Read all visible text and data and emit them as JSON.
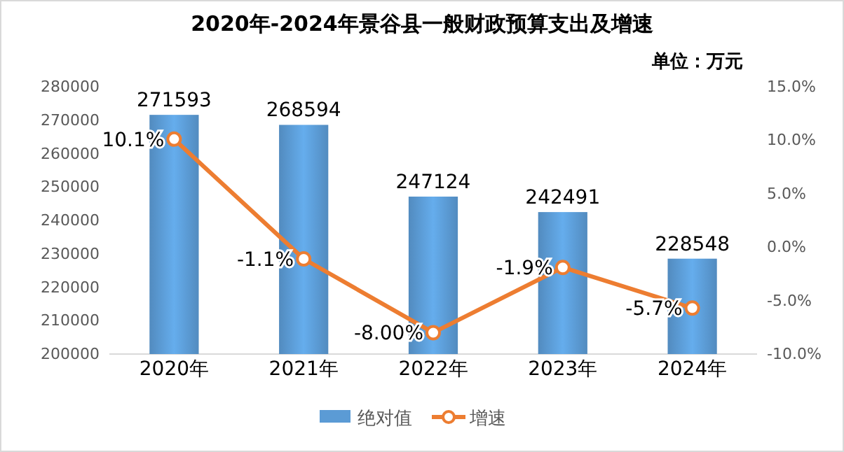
{
  "chart_data": {
    "type": "bar",
    "title": "2020年-2024年景谷县一般财政预算支出及增速",
    "subtitle": "单位：万元",
    "categories": [
      "2020年",
      "2021年",
      "2022年",
      "2023年",
      "2024年"
    ],
    "series": [
      {
        "name": "绝对值",
        "color": "#5b9bd5",
        "values": [
          271593,
          268594,
          247124,
          242491,
          228548
        ],
        "value_labels": [
          "271593",
          "268594",
          "247124",
          "242491",
          "228548"
        ]
      },
      {
        "name": "增速",
        "type": "line",
        "axis": "y2",
        "color": "#ed7d31",
        "values": [
          10.1,
          -1.1,
          -8.0,
          -1.9,
          -5.7
        ],
        "value_labels": [
          "10.1%",
          "-1.1%",
          "-8.00%",
          "-1.9%",
          "-5.7%"
        ]
      }
    ],
    "ylim": [
      200000,
      280000
    ],
    "yticks": [
      200000,
      210000,
      220000,
      230000,
      240000,
      250000,
      260000,
      270000,
      280000
    ],
    "y2lim": [
      -10,
      15
    ],
    "y2ticks": [
      {
        "value": -10,
        "label": "-10.0%"
      },
      {
        "value": -5,
        "label": "-5.0%"
      },
      {
        "value": 0,
        "label": "0.0%"
      },
      {
        "value": 5,
        "label": "5.0%"
      },
      {
        "value": 10,
        "label": "10.0%"
      },
      {
        "value": 15,
        "label": "15.0%"
      }
    ],
    "legend": "bottom",
    "marker": "circle",
    "line_style": "solid"
  }
}
